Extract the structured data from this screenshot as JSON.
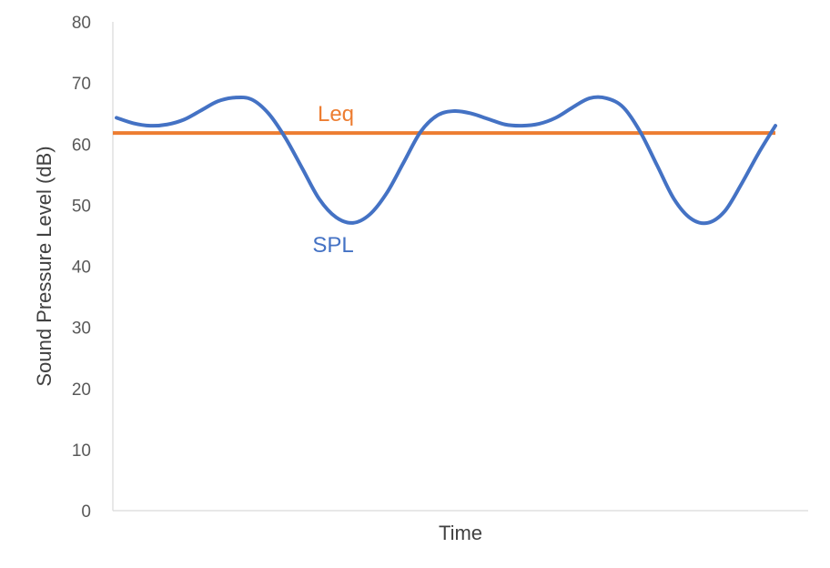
{
  "chart_data": {
    "type": "line",
    "title": "",
    "xlabel": "Time",
    "ylabel": "Sound Pressure Level (dB)",
    "ylim": [
      0,
      80
    ],
    "yticks": [
      0,
      10,
      20,
      30,
      40,
      50,
      60,
      70,
      80
    ],
    "grid": false,
    "legend": "none",
    "series": [
      {
        "name": "SPL",
        "color": "#4472C4",
        "values": [
          64.3,
          63.4,
          63.0,
          63.2,
          64.0,
          65.5,
          67.0,
          67.6,
          67.3,
          65.0,
          61.0,
          56.0,
          51.0,
          48.0,
          47.1,
          48.5,
          52.0,
          57.0,
          62.0,
          64.7,
          65.4,
          65.0,
          64.1,
          63.2,
          63.0,
          63.3,
          64.3,
          66.0,
          67.5,
          67.5,
          66.0,
          62.0,
          56.5,
          51.0,
          47.8,
          47.1,
          49.0,
          53.5,
          58.5,
          63.0
        ]
      },
      {
        "name": "Leq",
        "color": "#ED7D31",
        "values": [
          61.8,
          61.8
        ]
      }
    ]
  }
}
